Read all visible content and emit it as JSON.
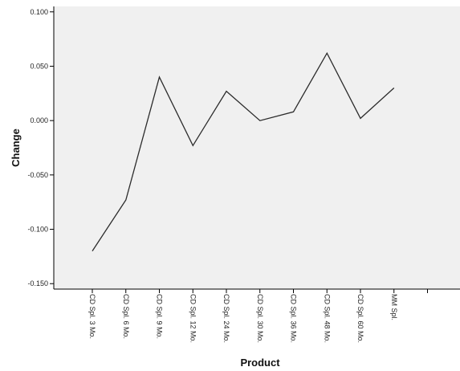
{
  "chart_data": {
    "type": "line",
    "title": "",
    "xlabel": "Product",
    "ylabel": "Change",
    "categories": [
      "CD Spl. 3 Mo.",
      "CD Spl. 6 Mo.",
      "CD Spl. 9 Mo.",
      "CD Spl. 12 Mo.",
      "CD Spl. 24 Mo.",
      "CD Spl. 30 Mo.",
      "CD Spl. 36 Mo.",
      "CD Spl. 48 Mo.",
      "CD Spl. 60 Mo.",
      "MM Spl."
    ],
    "series": [
      {
        "values": [
          -0.12,
          -0.073,
          0.04,
          -0.023,
          0.027,
          0.0,
          0.008,
          0.062,
          0.002,
          0.03
        ]
      }
    ],
    "ylim": [
      -0.155,
      0.105
    ],
    "yticks": [
      "-0.150",
      "-0.100",
      "-0.050",
      "0.000",
      "0.050",
      "0.100"
    ],
    "grid": false,
    "legend": "none",
    "colors": {
      "plot_background": "#f0f0f0",
      "line": "#2b2b2b",
      "axis": "#000000"
    }
  }
}
